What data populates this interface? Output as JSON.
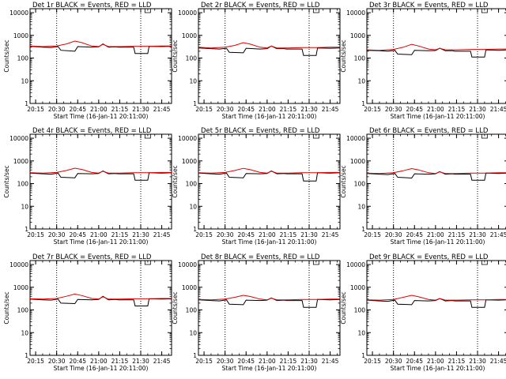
{
  "colors": {
    "events": "#000000",
    "lld": "#e00000",
    "background": "#ffffff",
    "axes": "#000000"
  },
  "shared": {
    "ylabel": "Counts/sec",
    "xlabel": "Start Time (16-Jan-11 20:11:00)",
    "x_tick_labels": [
      "20:15",
      "20:30",
      "20:45",
      "21:00",
      "21:15",
      "21:30",
      "21:45"
    ],
    "y_tick_labels": [
      "1",
      "10",
      "100",
      "1000",
      "10000"
    ]
  },
  "chart_data": [
    {
      "type": "line",
      "title": "Det 1r BLACK = Events, RED = LLD",
      "xlim": [
        "20:11",
        "21:52"
      ],
      "ylim": [
        1,
        15000
      ],
      "yscale": "log",
      "grid": false,
      "marker_lines": [
        "20:30",
        "21:30"
      ],
      "series": [
        {
          "name": "Events",
          "x": [
            "20:11",
            "20:20",
            "20:26",
            "20:31",
            "20:33",
            "20:43",
            "20:45",
            "20:55",
            "21:00",
            "21:03",
            "21:07",
            "21:12",
            "21:14",
            "21:19",
            "21:25",
            "21:26",
            "21:35",
            "21:36",
            "21:45",
            "21:52"
          ],
          "values": [
            330,
            300,
            290,
            320,
            220,
            200,
            320,
            300,
            310,
            420,
            300,
            310,
            300,
            300,
            300,
            160,
            160,
            330,
            320,
            330
          ]
        },
        {
          "name": "LLD",
          "x": [
            "20:11",
            "20:20",
            "20:30",
            "20:37",
            "20:43",
            "20:48",
            "20:55",
            "21:00",
            "21:03",
            "21:07",
            "21:15",
            "21:25",
            "21:35",
            "21:45",
            "21:52"
          ],
          "values": [
            340,
            320,
            340,
            420,
            560,
            480,
            340,
            320,
            400,
            320,
            320,
            330,
            330,
            340,
            340
          ]
        }
      ]
    },
    {
      "type": "line",
      "title": "Det 2r BLACK = Events, RED = LLD",
      "xlim": [
        "20:11",
        "21:52"
      ],
      "ylim": [
        1,
        15000
      ],
      "yscale": "log",
      "grid": false,
      "marker_lines": [
        "20:30",
        "21:30"
      ],
      "series": [
        {
          "name": "Events",
          "x": [
            "20:11",
            "20:20",
            "20:26",
            "20:31",
            "20:33",
            "20:43",
            "20:45",
            "20:55",
            "21:00",
            "21:03",
            "21:07",
            "21:12",
            "21:14",
            "21:19",
            "21:25",
            "21:26",
            "21:35",
            "21:36",
            "21:45",
            "21:52"
          ],
          "values": [
            280,
            260,
            250,
            270,
            180,
            170,
            270,
            250,
            260,
            340,
            260,
            260,
            250,
            250,
            250,
            130,
            130,
            280,
            270,
            280
          ]
        },
        {
          "name": "LLD",
          "x": [
            "20:11",
            "20:20",
            "20:30",
            "20:37",
            "20:43",
            "20:48",
            "20:55",
            "21:00",
            "21:03",
            "21:07",
            "21:15",
            "21:25",
            "21:35",
            "21:45",
            "21:52"
          ],
          "values": [
            300,
            280,
            300,
            360,
            480,
            410,
            300,
            280,
            340,
            280,
            280,
            290,
            290,
            300,
            300
          ]
        }
      ]
    },
    {
      "type": "line",
      "title": "Det 3r BLACK = Events, RED = LLD",
      "xlim": [
        "20:11",
        "21:52"
      ],
      "ylim": [
        1,
        15000
      ],
      "yscale": "log",
      "grid": false,
      "marker_lines": [
        "20:30",
        "21:30"
      ],
      "series": [
        {
          "name": "Events",
          "x": [
            "20:11",
            "20:20",
            "20:26",
            "20:31",
            "20:33",
            "20:43",
            "20:45",
            "20:55",
            "21:00",
            "21:03",
            "21:07",
            "21:12",
            "21:14",
            "21:19",
            "21:25",
            "21:26",
            "21:35",
            "21:36",
            "21:45",
            "21:52"
          ],
          "values": [
            220,
            210,
            200,
            220,
            150,
            140,
            220,
            210,
            215,
            270,
            210,
            210,
            200,
            200,
            200,
            110,
            110,
            230,
            220,
            230
          ]
        },
        {
          "name": "LLD",
          "x": [
            "20:11",
            "20:20",
            "20:30",
            "20:37",
            "20:43",
            "20:48",
            "20:55",
            "21:00",
            "21:03",
            "21:07",
            "21:15",
            "21:25",
            "21:35",
            "21:45",
            "21:52"
          ],
          "values": [
            230,
            220,
            240,
            300,
            400,
            340,
            250,
            230,
            270,
            230,
            230,
            240,
            240,
            250,
            250
          ]
        }
      ]
    },
    {
      "type": "line",
      "title": "Det 4r BLACK = Events, RED = LLD",
      "xlim": [
        "20:11",
        "21:52"
      ],
      "ylim": [
        1,
        15000
      ],
      "yscale": "log",
      "grid": false,
      "marker_lines": [
        "20:30",
        "21:30"
      ],
      "series": [
        {
          "name": "Events",
          "x": [
            "20:11",
            "20:20",
            "20:26",
            "20:31",
            "20:33",
            "20:43",
            "20:45",
            "20:55",
            "21:00",
            "21:03",
            "21:07",
            "21:12",
            "21:14",
            "21:19",
            "21:25",
            "21:26",
            "21:35",
            "21:36",
            "21:45",
            "21:52"
          ],
          "values": [
            290,
            270,
            260,
            290,
            190,
            180,
            280,
            270,
            280,
            360,
            270,
            280,
            270,
            270,
            270,
            140,
            140,
            300,
            290,
            300
          ]
        },
        {
          "name": "LLD",
          "x": [
            "20:11",
            "20:20",
            "20:30",
            "20:37",
            "20:43",
            "20:48",
            "20:55",
            "21:00",
            "21:03",
            "21:07",
            "21:15",
            "21:25",
            "21:35",
            "21:45",
            "21:52"
          ],
          "values": [
            300,
            290,
            310,
            380,
            480,
            420,
            310,
            290,
            350,
            290,
            290,
            300,
            300,
            310,
            310
          ]
        }
      ]
    },
    {
      "type": "line",
      "title": "Det 5r BLACK = Events, RED = LLD",
      "xlim": [
        "20:11",
        "21:52"
      ],
      "ylim": [
        1,
        15000
      ],
      "yscale": "log",
      "grid": false,
      "marker_lines": [
        "20:30",
        "21:30"
      ],
      "series": [
        {
          "name": "Events",
          "x": [
            "20:11",
            "20:20",
            "20:26",
            "20:31",
            "20:33",
            "20:43",
            "20:45",
            "20:55",
            "21:00",
            "21:03",
            "21:07",
            "21:12",
            "21:14",
            "21:19",
            "21:25",
            "21:26",
            "21:35",
            "21:36",
            "21:45",
            "21:52"
          ],
          "values": [
            290,
            270,
            260,
            290,
            190,
            180,
            280,
            270,
            280,
            360,
            270,
            280,
            270,
            270,
            270,
            130,
            130,
            300,
            290,
            300
          ]
        },
        {
          "name": "LLD",
          "x": [
            "20:11",
            "20:20",
            "20:30",
            "20:37",
            "20:43",
            "20:48",
            "20:55",
            "21:00",
            "21:03",
            "21:07",
            "21:15",
            "21:25",
            "21:35",
            "21:45",
            "21:52"
          ],
          "values": [
            300,
            290,
            310,
            380,
            470,
            410,
            310,
            290,
            350,
            290,
            290,
            300,
            300,
            310,
            310
          ]
        }
      ]
    },
    {
      "type": "line",
      "title": "Det 6r BLACK = Events, RED = LLD",
      "xlim": [
        "20:11",
        "21:52"
      ],
      "ylim": [
        1,
        15000
      ],
      "yscale": "log",
      "grid": false,
      "marker_lines": [
        "20:30",
        "21:30"
      ],
      "series": [
        {
          "name": "Events",
          "x": [
            "20:11",
            "20:20",
            "20:26",
            "20:31",
            "20:33",
            "20:43",
            "20:45",
            "20:55",
            "21:00",
            "21:03",
            "21:07",
            "21:12",
            "21:14",
            "21:19",
            "21:25",
            "21:26",
            "21:35",
            "21:36",
            "21:45",
            "21:52"
          ],
          "values": [
            280,
            260,
            250,
            280,
            190,
            175,
            270,
            260,
            270,
            340,
            260,
            270,
            260,
            260,
            260,
            140,
            140,
            290,
            280,
            290
          ]
        },
        {
          "name": "LLD",
          "x": [
            "20:11",
            "20:20",
            "20:30",
            "20:37",
            "20:43",
            "20:48",
            "20:55",
            "21:00",
            "21:03",
            "21:07",
            "21:15",
            "21:25",
            "21:35",
            "21:45",
            "21:52"
          ],
          "values": [
            290,
            280,
            300,
            370,
            460,
            400,
            300,
            280,
            330,
            280,
            280,
            290,
            290,
            300,
            300
          ]
        }
      ]
    },
    {
      "type": "line",
      "title": "Det 7r BLACK = Events, RED = LLD",
      "xlim": [
        "20:11",
        "21:52"
      ],
      "ylim": [
        1,
        15000
      ],
      "yscale": "log",
      "grid": false,
      "marker_lines": [
        "20:30",
        "21:30"
      ],
      "series": [
        {
          "name": "Events",
          "x": [
            "20:11",
            "20:20",
            "20:26",
            "20:31",
            "20:33",
            "20:43",
            "20:45",
            "20:55",
            "21:00",
            "21:03",
            "21:07",
            "21:12",
            "21:14",
            "21:19",
            "21:25",
            "21:26",
            "21:35",
            "21:36",
            "21:45",
            "21:52"
          ],
          "values": [
            300,
            280,
            270,
            300,
            200,
            190,
            290,
            280,
            290,
            400,
            280,
            290,
            280,
            280,
            280,
            150,
            150,
            310,
            300,
            310
          ]
        },
        {
          "name": "LLD",
          "x": [
            "20:11",
            "20:20",
            "20:30",
            "20:37",
            "20:43",
            "20:48",
            "20:55",
            "21:00",
            "21:03",
            "21:07",
            "21:15",
            "21:25",
            "21:35",
            "21:45",
            "21:52"
          ],
          "values": [
            310,
            300,
            320,
            400,
            500,
            430,
            320,
            300,
            380,
            300,
            300,
            310,
            310,
            320,
            320
          ]
        }
      ]
    },
    {
      "type": "line",
      "title": "Det 8r BLACK = Events, RED = LLD",
      "xlim": [
        "20:11",
        "21:52"
      ],
      "ylim": [
        1,
        15000
      ],
      "yscale": "log",
      "grid": false,
      "marker_lines": [
        "20:30",
        "21:30"
      ],
      "series": [
        {
          "name": "Events",
          "x": [
            "20:11",
            "20:20",
            "20:26",
            "20:31",
            "20:33",
            "20:43",
            "20:45",
            "20:55",
            "21:00",
            "21:03",
            "21:07",
            "21:12",
            "21:14",
            "21:19",
            "21:25",
            "21:26",
            "21:35",
            "21:36",
            "21:45",
            "21:52"
          ],
          "values": [
            280,
            260,
            250,
            280,
            180,
            170,
            270,
            260,
            270,
            340,
            260,
            270,
            260,
            260,
            260,
            130,
            130,
            290,
            280,
            290
          ]
        },
        {
          "name": "LLD",
          "x": [
            "20:11",
            "20:20",
            "20:30",
            "20:37",
            "20:43",
            "20:48",
            "20:55",
            "21:00",
            "21:03",
            "21:07",
            "21:15",
            "21:25",
            "21:35",
            "21:45",
            "21:52"
          ],
          "values": [
            290,
            280,
            300,
            360,
            440,
            390,
            300,
            280,
            330,
            280,
            280,
            290,
            290,
            300,
            300
          ]
        }
      ]
    },
    {
      "type": "line",
      "title": "Det 9r BLACK = Events, RED = LLD",
      "xlim": [
        "20:11",
        "21:52"
      ],
      "ylim": [
        1,
        15000
      ],
      "yscale": "log",
      "grid": false,
      "marker_lines": [
        "20:30",
        "21:30"
      ],
      "series": [
        {
          "name": "Events",
          "x": [
            "20:11",
            "20:20",
            "20:26",
            "20:31",
            "20:33",
            "20:43",
            "20:45",
            "20:55",
            "21:00",
            "21:03",
            "21:07",
            "21:12",
            "21:14",
            "21:19",
            "21:25",
            "21:26",
            "21:35",
            "21:36",
            "21:45",
            "21:52"
          ],
          "values": [
            270,
            250,
            240,
            270,
            180,
            170,
            260,
            250,
            260,
            320,
            250,
            260,
            250,
            250,
            250,
            130,
            130,
            280,
            270,
            280
          ]
        },
        {
          "name": "LLD",
          "x": [
            "20:11",
            "20:20",
            "20:30",
            "20:37",
            "20:43",
            "20:48",
            "20:55",
            "21:00",
            "21:03",
            "21:07",
            "21:15",
            "21:25",
            "21:35",
            "21:45",
            "21:52"
          ],
          "values": [
            280,
            270,
            290,
            360,
            440,
            380,
            290,
            270,
            320,
            270,
            270,
            280,
            280,
            290,
            290
          ]
        }
      ]
    }
  ]
}
